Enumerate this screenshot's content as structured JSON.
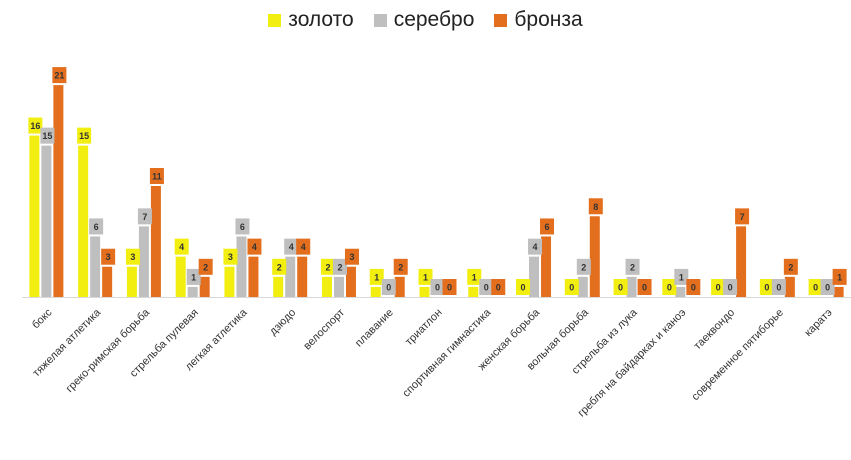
{
  "chart_data": {
    "type": "bar",
    "categories": [
      "бокс",
      "тяжелая атлетика",
      "греко-римская борьба",
      "стрельба пулевая",
      "легкая атлетика",
      "дзюдо",
      "велоспорт",
      "плавание",
      "триатлон",
      "спортивная гимнастика",
      "женская борьба",
      "вольная борьба",
      "стрельба из лука",
      "гребля на байдарках и каноэ",
      "таеквондо",
      "современное пятиборье",
      "каратэ"
    ],
    "series": [
      {
        "name": "золото",
        "color": "#f2ef10",
        "values": [
          16,
          15,
          3,
          4,
          3,
          2,
          2,
          1,
          1,
          1,
          0,
          0,
          0,
          0,
          0,
          0,
          0
        ]
      },
      {
        "name": "серебро",
        "color": "#bfbfbf",
        "values": [
          15,
          6,
          7,
          1,
          6,
          4,
          2,
          0,
          0,
          0,
          4,
          2,
          2,
          1,
          0,
          0,
          0
        ]
      },
      {
        "name": "бронза",
        "color": "#e36f1e",
        "values": [
          21,
          3,
          11,
          2,
          4,
          4,
          3,
          2,
          0,
          0,
          6,
          8,
          0,
          0,
          7,
          2,
          1
        ]
      }
    ],
    "ylim": [
      0,
      22
    ],
    "grid": false,
    "legend_position": "top-center"
  }
}
